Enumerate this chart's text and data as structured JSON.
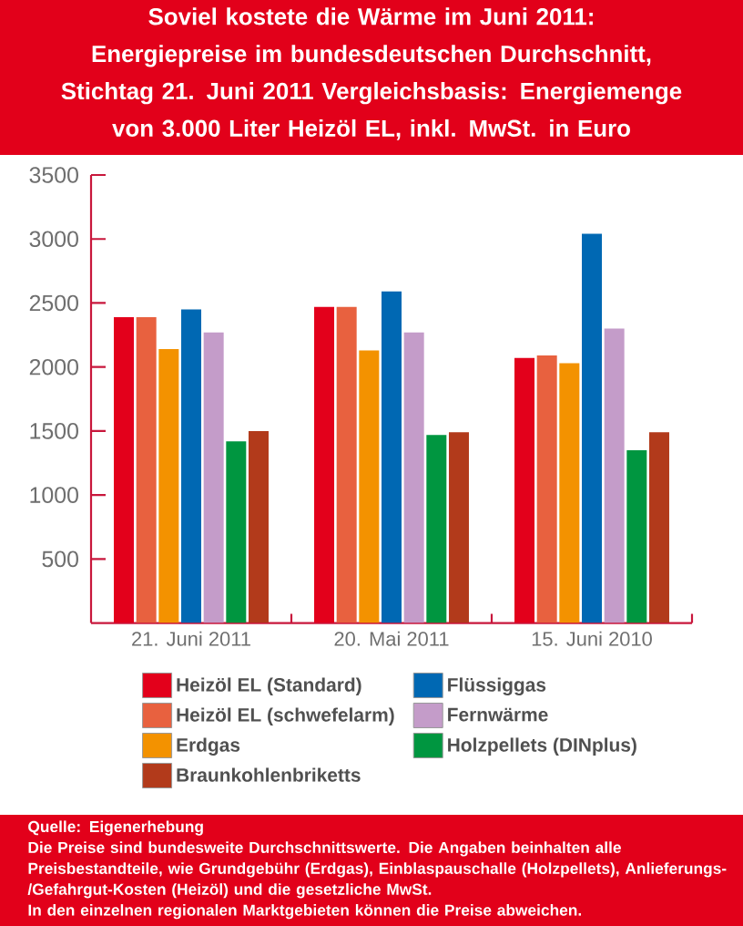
{
  "chart_data": {
    "type": "bar",
    "title": "Soviel kostete die Wärme im Juni 2011:",
    "subtitle": "Energiepreise im bundesdeutschen Durchschnitt, Stichtag 21. Juni 2011 Vergleichsbasis: Energiemenge von 3.000 Liter Heizöl EL, inkl. MwSt. in Euro",
    "categories": [
      "21. Juni 2011",
      "20. Mai 2011",
      "15. Juni 2010"
    ],
    "series": [
      {
        "name": "Heizöl EL (Standard)",
        "color": "#e3001b",
        "values": [
          2390,
          2470,
          2070
        ]
      },
      {
        "name": "Heizöl EL (schwefelarm)",
        "color": "#e8613f",
        "values": [
          2390,
          2470,
          2090
        ]
      },
      {
        "name": "Erdgas",
        "color": "#f39200",
        "values": [
          2140,
          2130,
          2030
        ]
      },
      {
        "name": "Flüssiggas",
        "color": "#0068b3",
        "values": [
          2450,
          2590,
          3040
        ]
      },
      {
        "name": "Fernwärme",
        "color": "#c49cc9",
        "values": [
          2270,
          2270,
          2300
        ]
      },
      {
        "name": "Holzpellets (DINplus)",
        "color": "#009640",
        "values": [
          1420,
          1470,
          1350
        ]
      },
      {
        "name": "Braunkohlenbriketts",
        "color": "#b23a1b",
        "values": [
          1500,
          1490,
          1490
        ]
      }
    ],
    "ylim": [
      0,
      3500
    ],
    "yticks": [
      500,
      1000,
      1500,
      2000,
      2500,
      3000,
      3500
    ],
    "legend": "bottom",
    "annotations": [
      "Quelle: Eigenerhebung",
      "Die Preise sind bundesweite Durchschnittswerte. Die Angaben beinhalten alle Preisbestandteile, wie Grundgebühr (Erdgas), Einblaspauschalle (Holzpellets), Anlieferungs-/Gefahrgut-Kosten (Heizöl) und die gesetzliche MwSt.",
      "In den einzelnen regionalen Marktgebieten können die Preise abweichen."
    ]
  }
}
